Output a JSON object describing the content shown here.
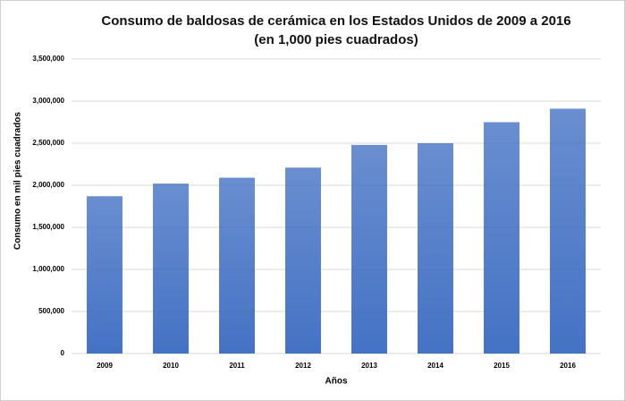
{
  "chart_data": {
    "type": "bar",
    "title": "Consumo de baldosas de cerámica en los Estados Unidos de 2009 a 2016",
    "subtitle": "(en 1,000 pies cuadrados)",
    "x_label": "Años",
    "y_label": "Consumo en mil pies cuadrados",
    "categories": [
      "2009",
      "2010",
      "2011",
      "2012",
      "2013",
      "2014",
      "2015",
      "2016"
    ],
    "values": [
      1870000,
      2020000,
      2090000,
      2210000,
      2480000,
      2500000,
      2750000,
      2910000
    ],
    "color": "#4472c4",
    "ylim": [
      0,
      3500000
    ],
    "yticks": [
      0,
      {
        "value": 500000,
        "label": "500,000"
      },
      {
        "value": 1000000,
        "label": "1,000,000"
      },
      {
        "value": 1500000,
        "label": "1,500,000"
      },
      {
        "value": 2000000,
        "label": "2,000,000"
      },
      {
        "value": 2500000,
        "label": "2,500,000"
      },
      {
        "value": 3000000,
        "label": "3,000,000"
      },
      {
        "value": 3500000,
        "label": "3,500,000"
      }
    ],
    "grid": true
  }
}
